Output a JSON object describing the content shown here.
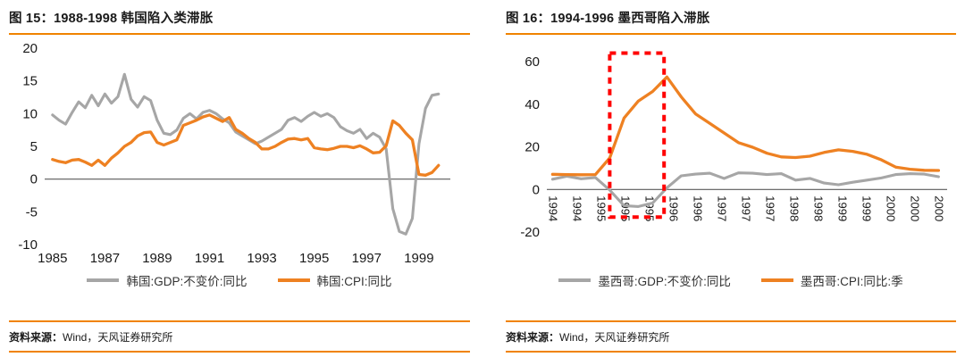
{
  "colors": {
    "accent": "#F08300",
    "gray_series": "#A6A6A6",
    "orange_series": "#EE8122",
    "highlight_red": "#FF0000",
    "axis_line": "#595959"
  },
  "panels": [
    {
      "title": "图 15：1988-1998 韩国陷入类滞胀",
      "source_label": "资料来源：",
      "source_text": "Wind，天风证券研究所"
    },
    {
      "title": "图 16：1994-1996 墨西哥陷入滞胀",
      "source_label": "资料来源：",
      "source_text": "Wind，天风证券研究所"
    }
  ],
  "chart_data": [
    {
      "type": "line",
      "title": "图 15：1988-1998 韩国陷入类滞胀",
      "xlabel": "",
      "ylabel": "",
      "grid": false,
      "legend_position": "bottom",
      "x_start": 1985,
      "x_step": 0.25,
      "xlim": [
        1984.7,
        2000.2
      ],
      "ylim": [
        -10,
        20
      ],
      "yticks": [
        -10,
        -5,
        0,
        5,
        10,
        15,
        20
      ],
      "xticks": {
        "mode": "values",
        "values": [
          1985,
          1987,
          1989,
          1991,
          1993,
          1995,
          1997,
          1999
        ],
        "labels": [
          "1985",
          "1987",
          "1989",
          "1991",
          "1993",
          "1995",
          "1997",
          "1999"
        ]
      },
      "series": [
        {
          "name": "韩国:GDP:不变价:同比",
          "color": "#A6A6A6",
          "width": 3.1,
          "values": [
            9.8,
            9.0,
            8.4,
            10.2,
            11.8,
            10.9,
            12.8,
            11.2,
            13.0,
            11.6,
            12.6,
            16.0,
            12.2,
            11.0,
            12.6,
            12.0,
            9.0,
            7.0,
            6.8,
            7.5,
            9.3,
            10.0,
            9.2,
            10.2,
            10.5,
            10.0,
            9.2,
            8.6,
            7.2,
            6.6,
            6.0,
            5.4,
            5.8,
            6.4,
            7.0,
            7.6,
            9.0,
            9.4,
            8.8,
            9.6,
            10.2,
            9.6,
            10.0,
            9.4,
            8.0,
            7.4,
            7.0,
            7.6,
            6.2,
            7.0,
            6.4,
            4.6,
            -4.5,
            -8.0,
            -8.4,
            -6.0,
            5.4,
            10.8,
            12.8,
            13.0
          ]
        },
        {
          "name": "韩国:CPI:同比",
          "color": "#EE8122",
          "width": 3.3,
          "values": [
            3.0,
            2.7,
            2.5,
            2.9,
            3.0,
            2.6,
            2.1,
            2.9,
            2.1,
            3.2,
            4.0,
            5.0,
            5.6,
            6.6,
            7.1,
            7.2,
            5.6,
            5.2,
            5.6,
            6.0,
            8.2,
            8.6,
            9.0,
            9.5,
            9.8,
            9.3,
            8.8,
            9.4,
            7.6,
            7.0,
            6.2,
            5.6,
            4.6,
            4.6,
            5.0,
            5.6,
            6.1,
            6.2,
            6.0,
            6.2,
            4.8,
            4.6,
            4.5,
            4.7,
            5.0,
            5.0,
            4.8,
            5.1,
            4.6,
            4.0,
            4.1,
            5.1,
            8.9,
            8.2,
            7.0,
            6.0,
            0.7,
            0.6,
            1.0,
            2.1
          ]
        }
      ]
    },
    {
      "type": "line",
      "title": "图 16：1994-1996 墨西哥陷入滞胀",
      "xlabel": "",
      "ylabel": "",
      "grid": false,
      "legend_position": "bottom",
      "x_start": 0,
      "x_step": 1,
      "xlim": [
        -0.4,
        27.6
      ],
      "ylim": [
        -20,
        68
      ],
      "yticks": [
        -20,
        0,
        20,
        40,
        60
      ],
      "xticks": {
        "mode": "rotated",
        "labels": [
          "1994",
          "1994",
          "1995",
          "1995",
          "1995",
          "1996",
          "1996",
          "1997",
          "1997",
          "1997",
          "1998",
          "1998",
          "1999",
          "1999",
          "2000",
          "2000",
          "2000"
        ]
      },
      "highlight_box": {
        "x0": 4.0,
        "x1": 7.8,
        "y0": -13,
        "y1": 64,
        "color": "#FF0000",
        "style": "dashed"
      },
      "series": [
        {
          "name": "墨西哥:GDP:不变价:同比",
          "color": "#A6A6A6",
          "width": 3.1,
          "values": [
            4.8,
            6.2,
            5.0,
            5.6,
            -0.3,
            -7.6,
            -8.0,
            -6.4,
            0.8,
            6.4,
            7.2,
            7.6,
            5.2,
            7.8,
            7.6,
            7.0,
            7.4,
            4.4,
            5.2,
            3.0,
            2.2,
            3.4,
            4.4,
            5.4,
            7.0,
            7.4,
            7.2,
            6.0
          ]
        },
        {
          "name": "墨西哥:CPI:同比:季",
          "color": "#EE8122",
          "width": 3.3,
          "values": [
            7.1,
            7.0,
            6.9,
            7.0,
            14.8,
            33.5,
            41.5,
            46.0,
            52.8,
            43.5,
            35.5,
            31.0,
            26.5,
            22.0,
            19.8,
            17.0,
            15.3,
            15.0,
            15.6,
            17.4,
            18.6,
            17.9,
            16.5,
            13.9,
            10.5,
            9.5,
            9.0,
            8.9
          ]
        }
      ]
    }
  ]
}
